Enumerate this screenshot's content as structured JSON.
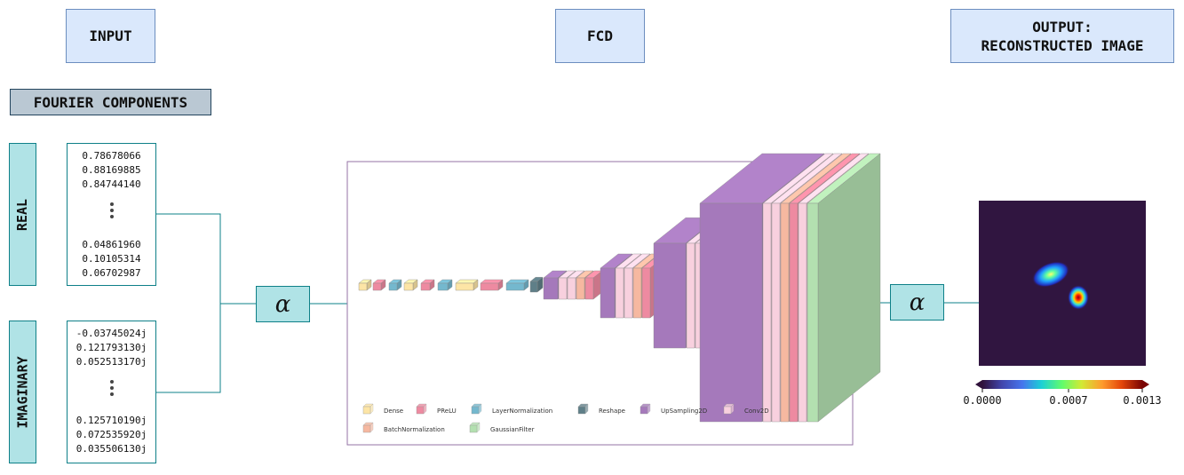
{
  "headers": {
    "input": "INPUT",
    "fcd": "FCD",
    "output_line1": "OUTPUT:",
    "output_line2": "RECONSTRUCTED IMAGE"
  },
  "fourier_label": "FOURIER COMPONENTS",
  "real": {
    "label": "REAL",
    "top_values": [
      "0.78678066",
      "0.88169885",
      "0.84744140"
    ],
    "bottom_values": [
      "0.04861960",
      "0.10105314",
      "0.06702987"
    ]
  },
  "imaginary": {
    "label": "IMAGINARY",
    "top_values": [
      "-0.03745024j",
      "0.121793130j",
      "0.052513170j"
    ],
    "bottom_values": [
      "0.125710190j",
      "0.072535920j",
      "0.035506130j"
    ]
  },
  "alpha_symbol": "α",
  "legend": [
    {
      "name": "Dense",
      "color": "#fde5a6"
    },
    {
      "name": "PReLU",
      "color": "#ee8aa1"
    },
    {
      "name": "LayerNormalization",
      "color": "#74b8ce"
    },
    {
      "name": "Reshape",
      "color": "#5f7f88"
    },
    {
      "name": "UpSampling2D",
      "color": "#a579bb"
    },
    {
      "name": "Conv2D",
      "color": "#f8d0de"
    },
    {
      "name": "BatchNormalization",
      "color": "#f6b8a0"
    },
    {
      "name": "GaussianFilter",
      "color": "#b3e0b0"
    }
  ],
  "colorbar": {
    "ticks": [
      "0.0000",
      "0.0007",
      "0.0013"
    ]
  },
  "colors": {
    "line": "#0e8088",
    "frame": "#9673a6",
    "image_bg": "#301540"
  }
}
